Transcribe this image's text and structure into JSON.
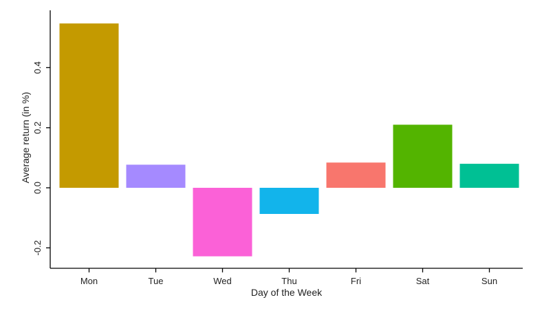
{
  "chart_data": {
    "type": "bar",
    "title": "",
    "xlabel": "Day of the Week",
    "ylabel": "Average return (in %)",
    "categories": [
      "Mon",
      "Tue",
      "Wed",
      "Thu",
      "Fri",
      "Sat",
      "Sun"
    ],
    "values": [
      0.547,
      0.077,
      -0.228,
      -0.087,
      0.084,
      0.21,
      0.08
    ],
    "colors": [
      "#C49A00",
      "#A58AFF",
      "#FB61D7",
      "#12B4EB",
      "#F8766D",
      "#53B400",
      "#00C094"
    ],
    "ylim": [
      -0.26,
      0.59
    ],
    "yticks": [
      -0.2,
      0.0,
      0.2,
      0.4
    ],
    "ytick_labels": [
      "-0.2",
      "0.0",
      "0.2",
      "0.4"
    ],
    "grid": false,
    "legend": "none"
  }
}
